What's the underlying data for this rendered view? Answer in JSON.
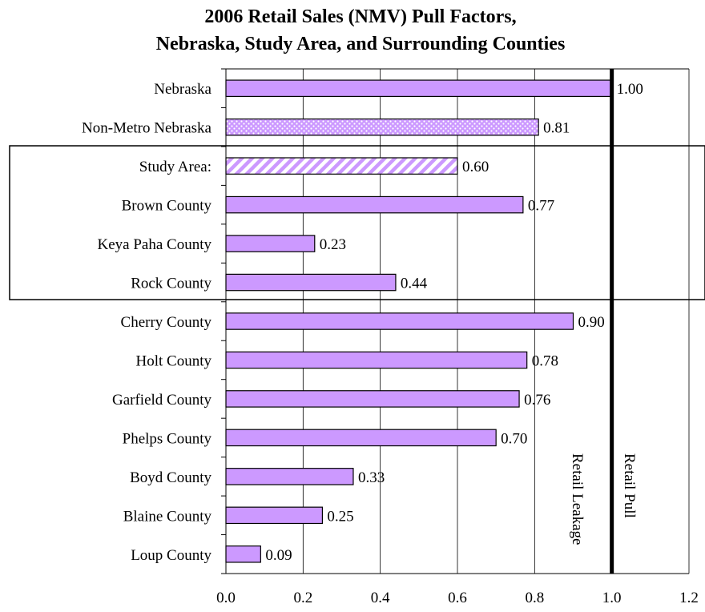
{
  "chart_data": {
    "type": "bar",
    "orientation": "horizontal",
    "title_lines": [
      "2006 Retail Sales (NMV) Pull Factors,",
      "Nebraska, Study Area, and Surrounding Counties"
    ],
    "categories": [
      "Nebraska",
      "Non-Metro Nebraska",
      "Study Area:",
      "Brown County",
      "Keya Paha County",
      "Rock County",
      "Cherry County",
      "Holt County",
      "Garfield County",
      "Phelps County",
      "Boyd County",
      "Blaine County",
      "Loup County"
    ],
    "values": [
      1.0,
      0.81,
      0.6,
      0.77,
      0.23,
      0.44,
      0.9,
      0.78,
      0.76,
      0.7,
      0.33,
      0.25,
      0.09
    ],
    "value_labels": [
      "1.00",
      "0.81",
      "0.60",
      "0.77",
      "0.23",
      "0.44",
      "0.90",
      "0.78",
      "0.76",
      "0.70",
      "0.33",
      "0.25",
      "0.09"
    ],
    "bar_fill": [
      "solid",
      "dotted",
      "hatched",
      "solid",
      "solid",
      "solid",
      "solid",
      "solid",
      "solid",
      "solid",
      "solid",
      "solid",
      "solid"
    ],
    "xlim": [
      0.0,
      1.2
    ],
    "x_ticks": [
      "0.0",
      "0.2",
      "0.4",
      "0.6",
      "0.8",
      "1.0",
      "1.2"
    ],
    "reference_line": 1.0,
    "highlight_group": [
      "Study Area:",
      "Brown County",
      "Keya Paha County",
      "Rock County"
    ],
    "annotations": {
      "left_of_line": "Retail Leakage",
      "right_of_line": "Retail Pull"
    },
    "grid": "vertical",
    "legend": "none",
    "colors": {
      "bar": "#cc99ff",
      "bar_stroke": "#000000",
      "dots": "#ffffff",
      "hatch_bg": "#ffffff",
      "grid": "#000000"
    }
  }
}
